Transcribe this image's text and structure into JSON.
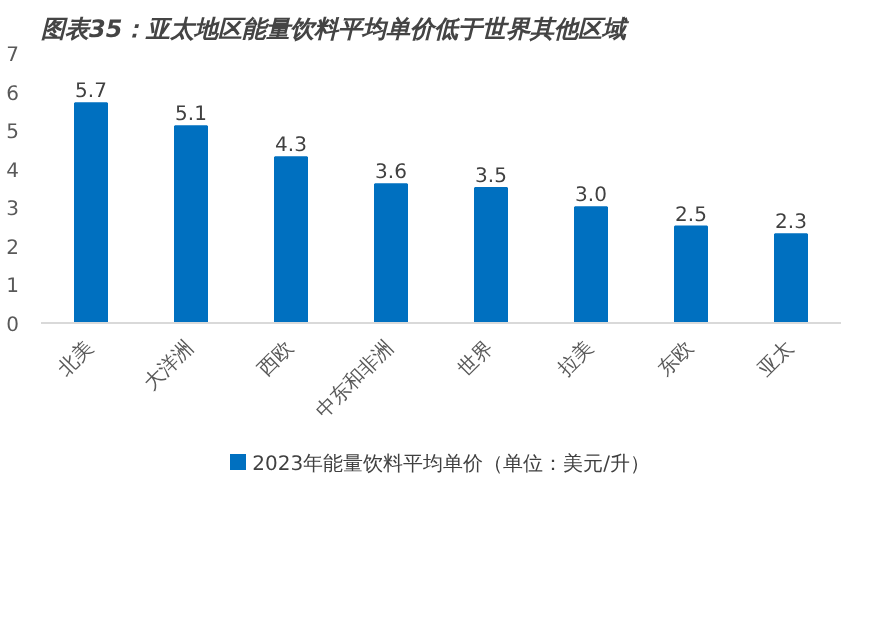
{
  "chart_data": {
    "type": "bar",
    "title": "图表35：亚太地区能量饮料平均单价低于世界其他区域",
    "categories": [
      "北美",
      "大洋洲",
      "西欧",
      "中东和非洲",
      "世界",
      "拉美",
      "东欧",
      "亚太"
    ],
    "series": [
      {
        "name": "2023年能量饮料平均单价（单位：美元/升）",
        "color": "#0070c0",
        "values": [
          5.7,
          5.1,
          4.3,
          3.6,
          3.5,
          3.0,
          2.5,
          2.3
        ],
        "value_labels": [
          "5.7",
          "5.1",
          "4.3",
          "3.6",
          "3.5",
          "3.0",
          "2.5",
          "2.3"
        ]
      }
    ],
    "ylim": [
      0,
      7
    ],
    "yticks": [
      0,
      1,
      2,
      3,
      4,
      5,
      6,
      7
    ],
    "grid": false,
    "legend": "bottom",
    "data_labels": true
  }
}
